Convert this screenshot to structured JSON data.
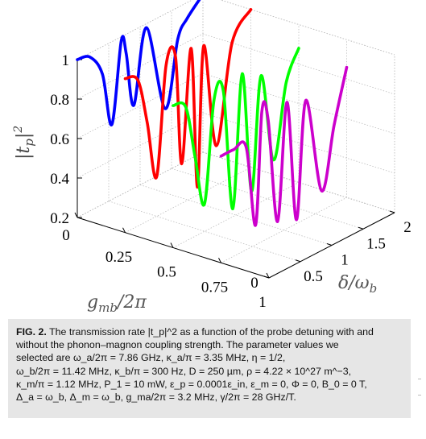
{
  "chart_data": {
    "type": "line",
    "title": "",
    "xlabel": "g_mb/2π",
    "ylabel": "|t_p|^2",
    "zlabel": "δ/ω_b",
    "x_ticks": [
      "0",
      "0.25",
      "0.5",
      "0.75",
      "1"
    ],
    "y_ticks": [
      "0",
      "0.5",
      "1",
      "1.5",
      "2"
    ],
    "z_ticks": [
      "0.2",
      "0.4",
      "0.6",
      "0.8",
      "1"
    ],
    "x_range": [
      0,
      1
    ],
    "y_range": [
      0,
      2
    ],
    "z_range": [
      0.2,
      1
    ],
    "grid": true,
    "series": [
      {
        "color": "#0000ff",
        "g": 0.0,
        "delta": [
          0.0,
          0.2,
          0.4,
          0.55,
          0.7,
          0.78,
          0.9,
          1.1,
          1.4,
          1.6,
          1.75,
          2.0
        ],
        "values": [
          1.0,
          0.98,
          0.86,
          0.58,
          0.98,
          0.9,
          0.62,
          0.98,
          0.52,
          0.84,
          0.92,
          1.0
        ]
      },
      {
        "color": "#ff0000",
        "g": 0.25,
        "delta": [
          0.0,
          0.2,
          0.35,
          0.5,
          0.65,
          0.8,
          0.9,
          1.05,
          1.15,
          1.25,
          1.45,
          1.7,
          2.0
        ],
        "values": [
          0.98,
          0.94,
          0.7,
          0.4,
          0.94,
          0.96,
          0.4,
          0.96,
          0.24,
          0.94,
          0.4,
          0.88,
          1.0
        ]
      },
      {
        "color": "#00ff00",
        "g": 0.5,
        "delta": [
          0.0,
          0.2,
          0.35,
          0.5,
          0.65,
          0.8,
          0.95,
          1.1,
          1.25,
          1.4,
          1.6,
          1.8,
          2.0
        ],
        "values": [
          0.92,
          0.88,
          0.6,
          0.34,
          0.84,
          0.86,
          0.24,
          0.9,
          0.28,
          0.84,
          0.38,
          0.74,
          0.88
        ]
      },
      {
        "color": "#cc00cc",
        "g": 0.75,
        "delta": [
          0.0,
          0.2,
          0.4,
          0.55,
          0.65,
          0.75,
          0.9,
          1.05,
          1.2,
          1.35,
          1.6,
          1.8,
          2.0
        ],
        "values": [
          0.74,
          0.74,
          0.72,
          0.3,
          0.86,
          0.8,
          0.26,
          0.84,
          0.22,
          0.8,
          0.3,
          0.6,
          0.86
        ]
      }
    ]
  },
  "caption": {
    "fig_label": "FIG. 2.",
    "lines": [
      "The transmission rate |t_p|^2 as a function of the probe detuning with and",
      "without the phonon–magnon coupling strength. The parameter values we",
      "selected    are    ω_a/2π = 7.86 GHz,    κ_a/π = 3.35 MHz,    η = 1/2,",
      "ω_b/2π = 11.42 MHz, κ_b/π = 300 Hz, D = 250 µm, ρ = 4.22 × 10^27 m^−3,",
      "κ_m/π = 1.12 MHz, P_1 = 10 mW, ε_p = 0.0001ε_in, ε_m = 0, Φ = 0, B_0 = 0 T,",
      "Δ_a = ω_b, Δ_m = ω_b, g_ma/2π = 3.2 MHz, γ/2π = 28 GHz/T."
    ]
  }
}
